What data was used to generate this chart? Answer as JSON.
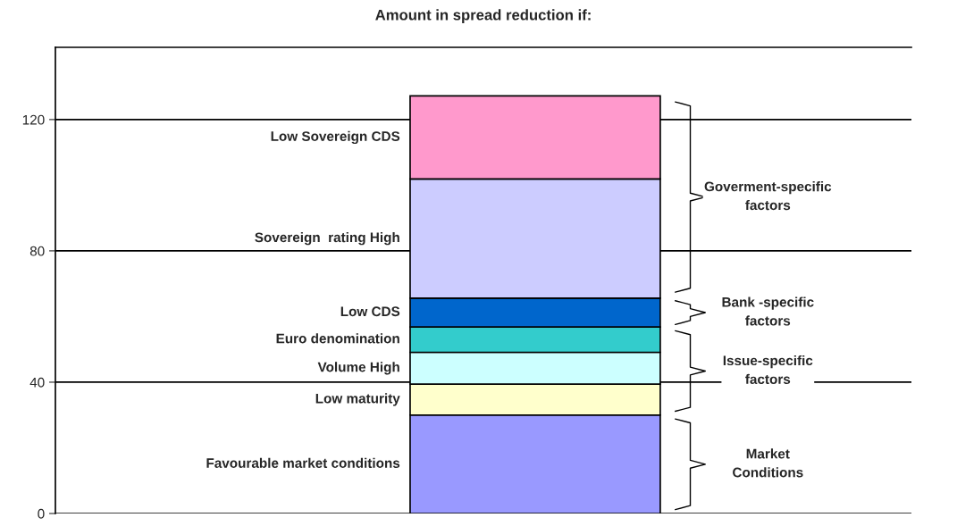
{
  "chart_data": {
    "type": "bar",
    "title": "Amount in spread reduction if:",
    "categories": [
      null
    ],
    "stacked": true,
    "series": [
      {
        "name": "Favourable market conditions",
        "color": "#9999ff",
        "values": [
          30
        ]
      },
      {
        "name": "Low maturity",
        "color": "#ffffcc",
        "values": [
          9.4
        ]
      },
      {
        "name": "Volume High",
        "color": "#ccffff",
        "values": [
          9.7
        ]
      },
      {
        "name": "Euro denomination",
        "color": "#33cccc",
        "values": [
          7.7
        ]
      },
      {
        "name": "Low CDS",
        "color": "#0066cc",
        "values": [
          8.8
        ]
      },
      {
        "name": "Sovereign  rating High",
        "color": "#ccccff",
        "values": [
          36.3
        ]
      },
      {
        "name": "Low Sovereign CDS",
        "color": "#ff99cc",
        "values": [
          25.3
        ]
      }
    ],
    "annotations": [
      "Market\nConditions",
      "Issue-specific\nfactors",
      "Bank -specific\nfactors",
      "Goverment-specific\nfactors"
    ],
    "ylim": [
      0,
      142
    ],
    "yticks": [
      0,
      40,
      80,
      120
    ],
    "grid": "y",
    "legend": false
  }
}
